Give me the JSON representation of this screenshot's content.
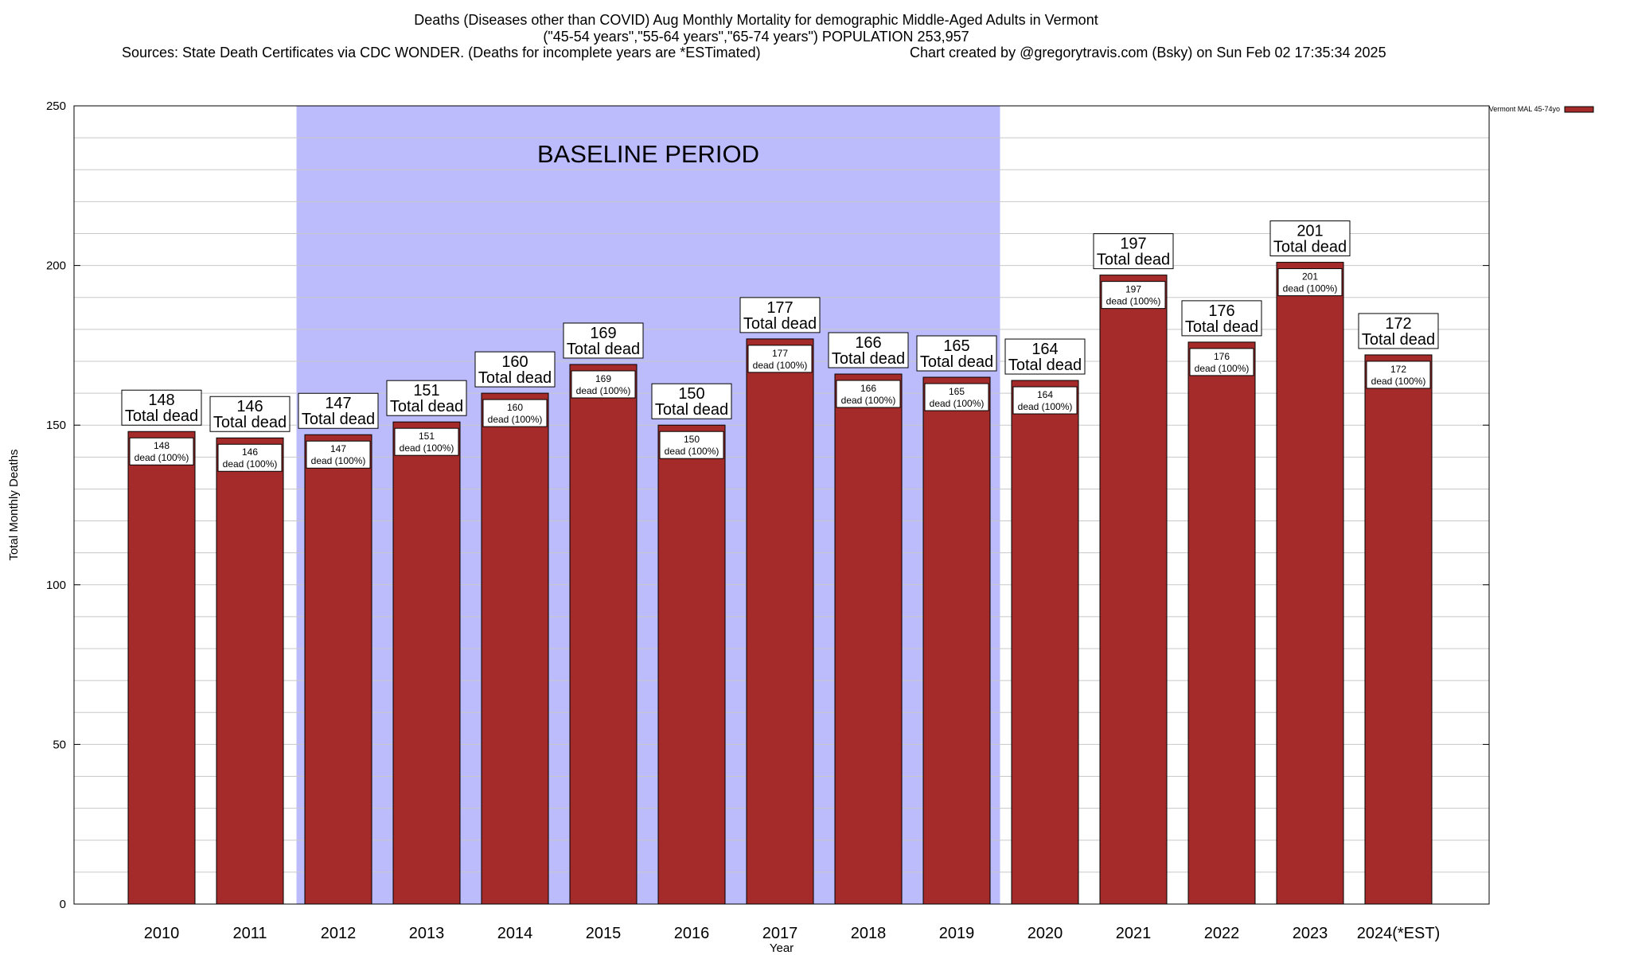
{
  "chart_data": {
    "type": "bar",
    "title_line1": "Deaths (Diseases other than COVID) Aug Monthly Mortality for demographic Middle-Aged Adults in Vermont",
    "title_line2": "(\"45-54 years\",\"55-64 years\",\"65-74 years\") POPULATION 253,957",
    "sources": "Sources: State Death Certificates via CDC WONDER. (Deaths for incomplete years are *ESTimated)",
    "credit": "Chart created by @gregorytravis.com (Bsky) on Sun Feb 02 17:35:34 2025",
    "xlabel": "Year",
    "ylabel": "Total Monthly Deaths",
    "ylim": [
      0,
      250
    ],
    "yticks": [
      0,
      50,
      100,
      150,
      200,
      250
    ],
    "categories": [
      "2010",
      "2011",
      "2012",
      "2013",
      "2014",
      "2015",
      "2016",
      "2017",
      "2018",
      "2019",
      "2020",
      "2021",
      "2022",
      "2023",
      "2024(*EST)"
    ],
    "values": [
      148,
      146,
      147,
      151,
      160,
      169,
      150,
      177,
      166,
      165,
      164,
      197,
      176,
      201,
      172
    ],
    "series_name": "Vermont MAL 45-74yo",
    "bar_color": "#a52a2a",
    "baseline_color": "#bcbcfc",
    "baseline_label": "BASELINE PERIOD",
    "baseline_range": [
      "2012",
      "2019"
    ],
    "total_label": "Total dead",
    "inner_label": "dead (100%)",
    "grid": true,
    "legend_position": "top-right"
  }
}
